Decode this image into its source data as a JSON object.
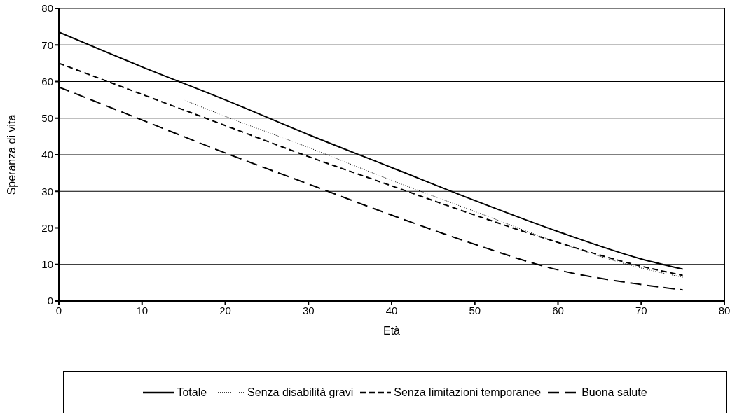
{
  "chart_data": {
    "type": "line",
    "xlabel": "Età",
    "ylabel": "Speranza di vita",
    "xlim": [
      0,
      80
    ],
    "xticks": [
      0,
      10,
      20,
      30,
      40,
      50,
      60,
      70,
      80
    ],
    "ylim": [
      0,
      80
    ],
    "yticks": [
      0,
      10,
      20,
      30,
      40,
      50,
      60,
      70,
      80
    ],
    "grid": "y",
    "legend": "bottom",
    "marker": "none",
    "series": [
      {
        "name": "Totale",
        "color": "#000000",
        "line_style": "solid",
        "x": [
          0,
          10,
          20,
          30,
          40,
          50,
          60,
          70,
          75
        ],
        "values": [
          73.5,
          64,
          55,
          45.5,
          36.5,
          27.5,
          19,
          11.5,
          8.7
        ]
      },
      {
        "name": "Senza disabilità gravi",
        "color": "#000000",
        "line_style": "dotted",
        "x": [
          15,
          20,
          30,
          40,
          50,
          60,
          70,
          75
        ],
        "values": [
          55,
          50.5,
          42,
          33,
          24.5,
          16,
          9,
          6.5
        ]
      },
      {
        "name": "Senza limitazioni temporanee",
        "color": "#000000",
        "line_style": "dashed",
        "x": [
          0,
          10,
          20,
          30,
          40,
          50,
          60,
          70,
          75
        ],
        "values": [
          65,
          56.5,
          48,
          39.5,
          31.5,
          23.5,
          16,
          9.5,
          7
        ]
      },
      {
        "name": "Buona salute",
        "color": "#000000",
        "line_style": "dashed",
        "x": [
          0,
          10,
          20,
          30,
          40,
          50,
          60,
          70,
          75
        ],
        "values": [
          58.5,
          49.5,
          40.5,
          32,
          23.5,
          15.5,
          8.5,
          4.5,
          3
        ]
      }
    ]
  }
}
